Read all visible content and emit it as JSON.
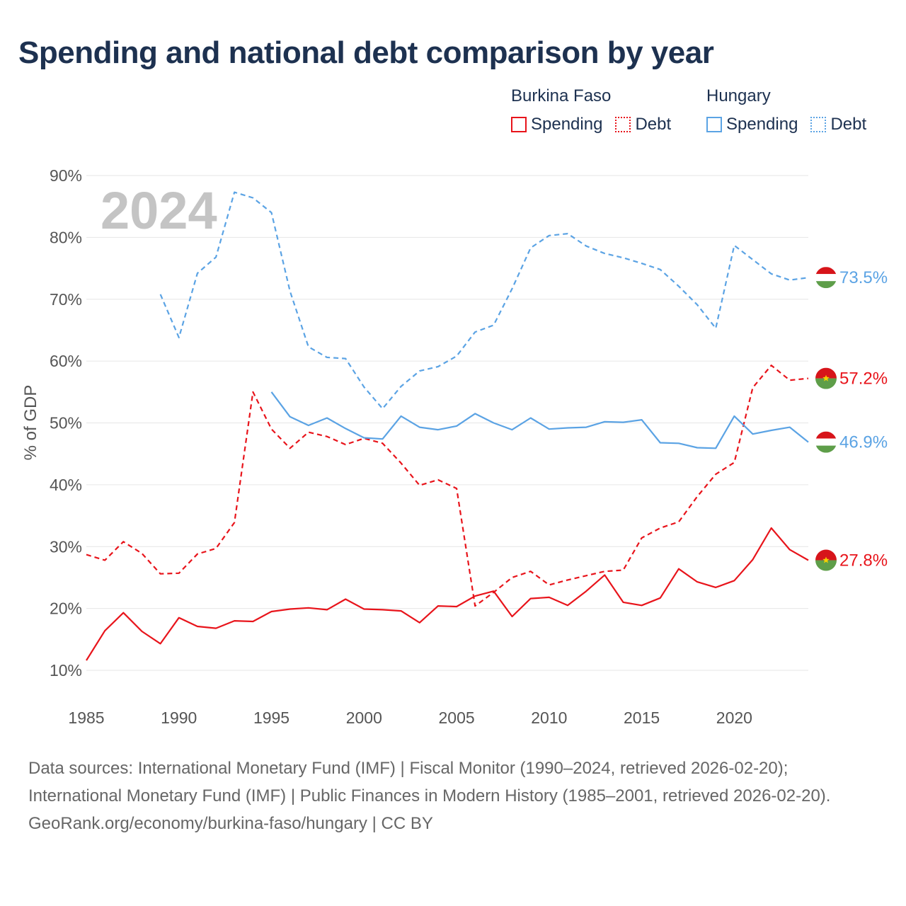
{
  "title": "Spending and national debt comparison by year",
  "legend": {
    "groups": [
      {
        "name": "Burkina Faso",
        "color": "#e8141b",
        "items": [
          {
            "label": "Spending",
            "style": "solid"
          },
          {
            "label": "Debt",
            "style": "dotted"
          }
        ]
      },
      {
        "name": "Hungary",
        "color": "#5ba3e4",
        "items": [
          {
            "label": "Spending",
            "style": "solid"
          },
          {
            "label": "Debt",
            "style": "dotted"
          }
        ]
      }
    ]
  },
  "chart_data": {
    "type": "line",
    "watermark": "2024",
    "ylabel": "% of GDP",
    "xlabel": "",
    "xlim": [
      1985,
      2024
    ],
    "ylim": [
      10,
      90
    ],
    "yticks": [
      10,
      20,
      30,
      40,
      50,
      60,
      70,
      80,
      90
    ],
    "ytick_labels": [
      "10%",
      "20%",
      "30%",
      "40%",
      "50%",
      "60%",
      "70%",
      "80%",
      "90%"
    ],
    "xticks": [
      1985,
      1990,
      1995,
      2000,
      2005,
      2010,
      2015,
      2020
    ],
    "xtick_labels": [
      "1985",
      "1990",
      "1995",
      "2000",
      "2005",
      "2010",
      "2015",
      "2020"
    ],
    "grid": true,
    "series": [
      {
        "name": "Hungary Debt",
        "country": "Hungary",
        "kind": "Debt",
        "color": "#5ba3e4",
        "dash": "dashed",
        "end_label": "73.5%",
        "flag": "hungary",
        "x": [
          1989,
          1990,
          1991,
          1992,
          1993,
          1994,
          1995,
          1996,
          1997,
          1998,
          1999,
          2000,
          2001,
          2002,
          2003,
          2004,
          2005,
          2006,
          2007,
          2008,
          2009,
          2010,
          2011,
          2012,
          2013,
          2014,
          2015,
          2016,
          2017,
          2018,
          2019,
          2020,
          2021,
          2022,
          2023,
          2024
        ],
        "values": [
          70.8,
          63.8,
          74.2,
          76.8,
          87.3,
          86.4,
          84.0,
          71.3,
          62.3,
          60.6,
          60.4,
          55.8,
          52.3,
          55.9,
          58.4,
          59.1,
          60.8,
          64.7,
          65.8,
          71.7,
          78.3,
          80.3,
          80.6,
          78.6,
          77.4,
          76.7,
          75.8,
          74.8,
          72.1,
          69.1,
          65.3,
          78.7,
          76.4,
          74.1,
          73.1,
          73.5
        ]
      },
      {
        "name": "Burkina Faso Debt",
        "country": "Burkina Faso",
        "kind": "Debt",
        "color": "#e8141b",
        "dash": "dashed",
        "end_label": "57.2%",
        "flag": "burkina-faso",
        "x": [
          1985,
          1986,
          1987,
          1988,
          1989,
          1990,
          1991,
          1992,
          1993,
          1994,
          1995,
          1996,
          1997,
          1998,
          1999,
          2000,
          2001,
          2002,
          2003,
          2004,
          2005,
          2006,
          2007,
          2008,
          2009,
          2010,
          2011,
          2012,
          2013,
          2014,
          2015,
          2016,
          2017,
          2018,
          2019,
          2020,
          2021,
          2022,
          2023,
          2024
        ],
        "values": [
          28.7,
          27.8,
          30.8,
          28.9,
          25.6,
          25.7,
          28.8,
          29.7,
          33.9,
          55.0,
          49.0,
          45.9,
          48.5,
          47.8,
          46.5,
          47.5,
          46.7,
          43.5,
          39.9,
          40.8,
          39.4,
          20.4,
          22.6,
          25.0,
          26.0,
          23.8,
          24.6,
          25.3,
          26.0,
          26.2,
          31.4,
          33.0,
          34.0,
          38.1,
          41.7,
          43.6,
          55.7,
          59.3,
          56.9,
          57.2
        ]
      },
      {
        "name": "Hungary Spending",
        "country": "Hungary",
        "kind": "Spending",
        "color": "#5ba3e4",
        "dash": "solid",
        "end_label": "46.9%",
        "flag": "hungary",
        "x": [
          1995,
          1996,
          1997,
          1998,
          1999,
          2000,
          2001,
          2002,
          2003,
          2004,
          2005,
          2006,
          2007,
          2008,
          2009,
          2010,
          2011,
          2012,
          2013,
          2014,
          2015,
          2016,
          2017,
          2018,
          2019,
          2020,
          2021,
          2022,
          2023,
          2024
        ],
        "values": [
          55.0,
          51.0,
          49.6,
          50.8,
          49.1,
          47.6,
          47.4,
          51.1,
          49.3,
          48.9,
          49.5,
          51.5,
          50.0,
          48.9,
          50.8,
          49.0,
          49.2,
          49.3,
          50.2,
          50.1,
          50.5,
          46.8,
          46.7,
          46.0,
          45.9,
          51.1,
          48.2,
          48.8,
          49.3,
          46.9
        ]
      },
      {
        "name": "Burkina Faso Spending",
        "country": "Burkina Faso",
        "kind": "Spending",
        "color": "#e8141b",
        "dash": "solid",
        "end_label": "27.8%",
        "flag": "burkina-faso",
        "x": [
          1985,
          1986,
          1987,
          1988,
          1989,
          1990,
          1991,
          1992,
          1993,
          1994,
          1995,
          1996,
          1997,
          1998,
          1999,
          2000,
          2001,
          2002,
          2003,
          2004,
          2005,
          2006,
          2007,
          2008,
          2009,
          2010,
          2011,
          2012,
          2013,
          2014,
          2015,
          2016,
          2017,
          2018,
          2019,
          2020,
          2021,
          2022,
          2023,
          2024
        ],
        "values": [
          11.6,
          16.4,
          19.3,
          16.3,
          14.3,
          18.5,
          17.1,
          16.8,
          18.0,
          17.9,
          19.5,
          19.9,
          20.1,
          19.8,
          21.5,
          19.9,
          19.8,
          19.6,
          17.7,
          20.4,
          20.3,
          22.0,
          22.8,
          18.7,
          21.6,
          21.8,
          20.5,
          22.8,
          25.4,
          21.0,
          20.5,
          21.7,
          26.4,
          24.3,
          23.4,
          24.5,
          27.9,
          33.0,
          29.5,
          27.8
        ]
      }
    ]
  },
  "footer": {
    "sources": "Data sources: International Monetary Fund (IMF) | Fiscal Monitor (1990–2024, retrieved 2026-02-20); International Monetary Fund (IMF) | Public Finances in Modern History (1985–2001, retrieved 2026-02-20).",
    "credit": "GeoRank.org/economy/burkina-faso/hungary | CC BY"
  }
}
